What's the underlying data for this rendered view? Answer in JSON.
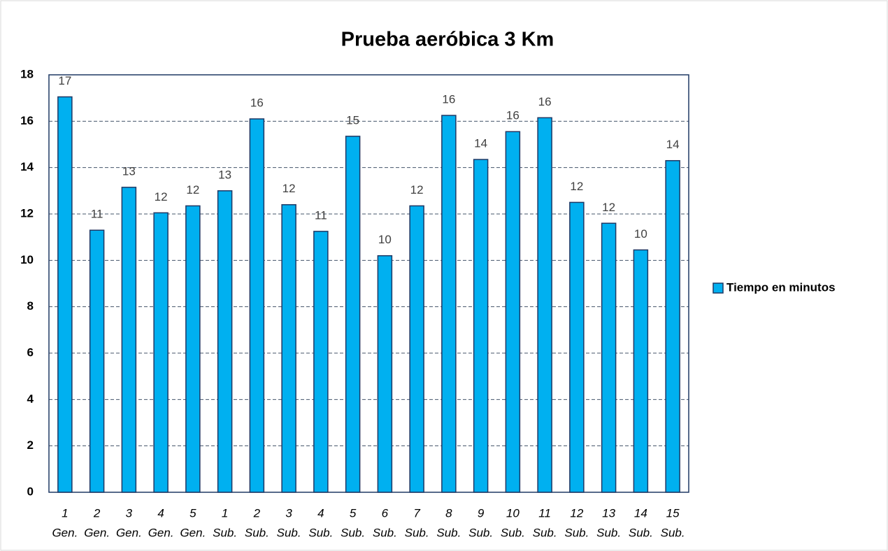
{
  "chart_data": {
    "type": "bar",
    "title": "Prueba aeróbica 3 Km",
    "categories": [
      [
        "1",
        "Gen."
      ],
      [
        "2",
        "Gen."
      ],
      [
        "3",
        "Gen."
      ],
      [
        "4",
        "Gen."
      ],
      [
        "5",
        "Gen."
      ],
      [
        "1",
        "Sub."
      ],
      [
        "2",
        "Sub."
      ],
      [
        "3",
        "Sub."
      ],
      [
        "4",
        "Sub."
      ],
      [
        "5",
        "Sub."
      ],
      [
        "6",
        "Sub."
      ],
      [
        "7",
        "Sub."
      ],
      [
        "8",
        "Sub."
      ],
      [
        "9",
        "Sub."
      ],
      [
        "10",
        "Sub."
      ],
      [
        "11",
        "Sub."
      ],
      [
        "12",
        "Sub."
      ],
      [
        "13",
        "Sub."
      ],
      [
        "14",
        "Sub."
      ],
      [
        "15",
        "Sub."
      ]
    ],
    "series": [
      {
        "name": "Tiempo en minutos",
        "color": "#00b0f0",
        "values": [
          17.05,
          11.3,
          13.15,
          12.05,
          12.35,
          13.0,
          16.1,
          12.4,
          11.25,
          15.35,
          10.2,
          12.35,
          16.25,
          14.35,
          15.55,
          16.15,
          12.5,
          11.6,
          10.45,
          14.3
        ],
        "value_labels": [
          "17",
          "11",
          "13",
          "12",
          "12",
          "13",
          "16",
          "12",
          "11",
          "15",
          "10",
          "12",
          "16",
          "14",
          "16",
          "16",
          "12",
          "12",
          "10",
          "14"
        ]
      }
    ],
    "ylim": [
      0,
      18
    ],
    "yticks": [
      0,
      2,
      4,
      6,
      8,
      10,
      12,
      14,
      16,
      18
    ],
    "grid": true,
    "legend": "right"
  }
}
